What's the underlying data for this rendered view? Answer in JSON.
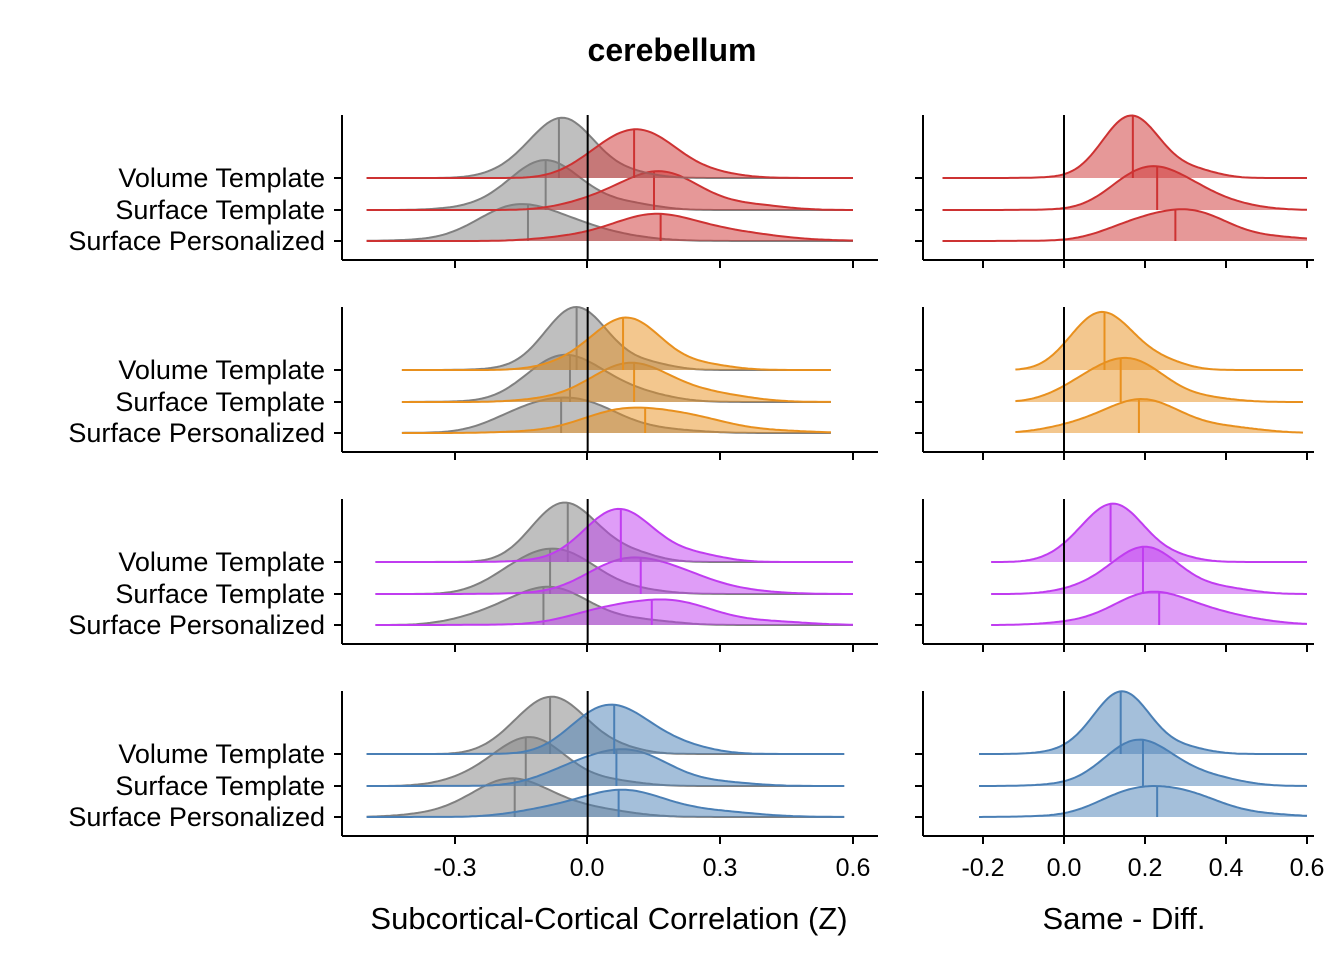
{
  "chart_data": {
    "type": "ridgeline",
    "title": "cerebellum",
    "row_labels": [
      "Volume Template",
      "Surface Template",
      "Surface Personalized"
    ],
    "colors": {
      "reference": "#808080",
      "rows": [
        "#cd3232",
        "#e8901e",
        "#c03cf0",
        "#4a7fb5"
      ]
    },
    "left_panel": {
      "xlabel": "Subcortical-Cortical Correlation (Z)",
      "xlim": [
        -0.55,
        0.65
      ],
      "ticks": [
        -0.3,
        0.0,
        0.3,
        0.6
      ],
      "tick_labels": [
        "-0.3",
        "0.0",
        "0.3",
        "0.6"
      ],
      "rows": [
        {
          "range": [
            -0.5,
            0.6
          ],
          "reference_medians": [
            -0.065,
            -0.095,
            -0.135
          ],
          "group_medians": [
            0.105,
            0.15,
            0.165
          ]
        },
        {
          "range": [
            -0.42,
            0.55
          ],
          "reference_medians": [
            -0.025,
            -0.04,
            -0.06
          ],
          "group_medians": [
            0.08,
            0.105,
            0.13
          ]
        },
        {
          "range": [
            -0.48,
            0.6
          ],
          "reference_medians": [
            -0.045,
            -0.085,
            -0.1
          ],
          "group_medians": [
            0.075,
            0.12,
            0.145
          ]
        },
        {
          "range": [
            -0.5,
            0.58
          ],
          "reference_medians": [
            -0.085,
            -0.14,
            -0.165
          ],
          "group_medians": [
            0.06,
            0.065,
            0.07
          ]
        }
      ]
    },
    "right_panel": {
      "xlabel": "Same - Diff.",
      "xlim": [
        -0.35,
        0.63
      ],
      "ticks": [
        -0.2,
        0.0,
        0.2,
        0.4,
        0.6
      ],
      "tick_labels": [
        "-0.2",
        "0.0",
        "0.2",
        "0.4",
        "0.6"
      ],
      "rows": [
        {
          "range": [
            -0.3,
            0.6
          ],
          "medians": [
            0.17,
            0.23,
            0.275
          ]
        },
        {
          "range": [
            -0.12,
            0.59
          ],
          "medians": [
            0.1,
            0.14,
            0.185
          ]
        },
        {
          "range": [
            -0.18,
            0.6
          ],
          "medians": [
            0.115,
            0.195,
            0.235
          ]
        },
        {
          "range": [
            -0.21,
            0.6
          ],
          "medians": [
            0.14,
            0.195,
            0.23
          ]
        }
      ]
    }
  }
}
